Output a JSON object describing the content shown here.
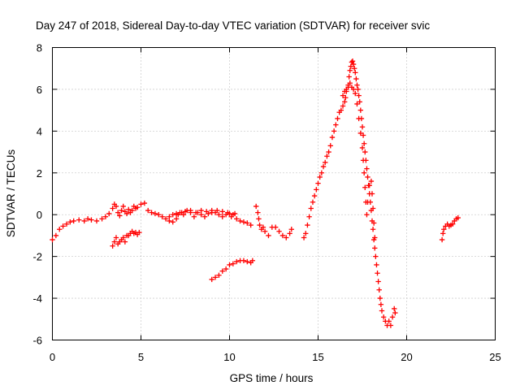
{
  "chart_data": {
    "type": "scatter",
    "title": "Day 247 of 2018, Sidereal Day-to-day VTEC variation (SDTVAR) for receiver svic",
    "xlabel": "GPS time / hours",
    "ylabel": "SDTVAR / TECUs",
    "xlim": [
      0,
      25
    ],
    "ylim": [
      -6,
      8
    ],
    "x_ticks": [
      0,
      5,
      10,
      15,
      20,
      25
    ],
    "y_ticks": [
      -6,
      -4,
      -2,
      0,
      2,
      4,
      6,
      8
    ],
    "grid": true,
    "marker": "+",
    "marker_color": "#ff0000",
    "series": [
      {
        "name": "trace-1",
        "points": [
          [
            0.0,
            -1.2
          ],
          [
            0.2,
            -1.0
          ],
          [
            0.4,
            -0.7
          ],
          [
            0.6,
            -0.55
          ],
          [
            0.8,
            -0.45
          ],
          [
            1.0,
            -0.35
          ],
          [
            1.2,
            -0.3
          ],
          [
            1.5,
            -0.25
          ],
          [
            1.8,
            -0.3
          ],
          [
            2.0,
            -0.2
          ],
          [
            2.2,
            -0.25
          ],
          [
            2.5,
            -0.3
          ],
          [
            2.8,
            -0.2
          ],
          [
            3.0,
            -0.1
          ],
          [
            3.2,
            0.05
          ],
          [
            3.4,
            0.3
          ],
          [
            3.5,
            0.5
          ],
          [
            3.6,
            0.4
          ],
          [
            3.7,
            0.1
          ],
          [
            3.8,
            -0.05
          ],
          [
            3.9,
            0.2
          ],
          [
            4.0,
            0.4
          ],
          [
            4.1,
            0.15
          ],
          [
            4.2,
            0.05
          ],
          [
            4.3,
            0.25
          ],
          [
            4.4,
            0.1
          ],
          [
            4.5,
            0.2
          ],
          [
            4.6,
            0.4
          ],
          [
            4.7,
            0.3
          ],
          [
            4.8,
            0.35
          ],
          [
            5.0,
            0.5
          ],
          [
            5.2,
            0.55
          ],
          [
            5.4,
            0.2
          ],
          [
            5.6,
            0.1
          ],
          [
            5.8,
            0.05
          ],
          [
            6.0,
            0.0
          ],
          [
            6.2,
            -0.1
          ],
          [
            6.4,
            -0.2
          ],
          [
            6.6,
            -0.3
          ],
          [
            6.8,
            -0.35
          ],
          [
            7.0,
            -0.2
          ],
          [
            7.1,
            0.0
          ],
          [
            7.2,
            0.1
          ],
          [
            7.4,
            0.0
          ],
          [
            7.6,
            0.2
          ],
          [
            7.8,
            0.1
          ],
          [
            8.0,
            -0.1
          ],
          [
            8.2,
            0.1
          ],
          [
            8.4,
            0.0
          ],
          [
            8.6,
            -0.1
          ],
          [
            8.8,
            0.05
          ],
          [
            9.0,
            0.2
          ],
          [
            9.2,
            0.1
          ],
          [
            9.4,
            0.0
          ],
          [
            9.6,
            -0.1
          ],
          [
            9.8,
            0.0
          ],
          [
            10.0,
            0.05
          ],
          [
            10.2,
            0.0
          ],
          [
            10.4,
            -0.2
          ],
          [
            10.6,
            -0.3
          ],
          [
            10.8,
            -0.35
          ],
          [
            11.0,
            -0.4
          ],
          [
            11.2,
            -0.5
          ]
        ]
      },
      {
        "name": "trace-1b",
        "points": [
          [
            6.6,
            -0.1
          ],
          [
            6.8,
            0.0
          ],
          [
            7.0,
            0.05
          ],
          [
            7.3,
            0.1
          ],
          [
            7.5,
            0.15
          ],
          [
            7.8,
            0.2
          ],
          [
            8.1,
            0.1
          ],
          [
            8.4,
            0.2
          ],
          [
            8.7,
            0.15
          ],
          [
            9.0,
            0.1
          ],
          [
            9.3,
            0.2
          ],
          [
            9.6,
            0.15
          ],
          [
            9.9,
            0.1
          ],
          [
            10.1,
            -0.1
          ],
          [
            10.3,
            0.05
          ]
        ]
      },
      {
        "name": "trace-2",
        "points": [
          [
            3.4,
            -1.5
          ],
          [
            3.5,
            -1.3
          ],
          [
            3.6,
            -1.1
          ],
          [
            3.7,
            -1.4
          ],
          [
            3.8,
            -1.3
          ],
          [
            3.9,
            -1.2
          ],
          [
            4.0,
            -1.1
          ],
          [
            4.1,
            -1.3
          ],
          [
            4.2,
            -1.0
          ],
          [
            4.3,
            -1.0
          ],
          [
            4.4,
            -0.9
          ],
          [
            4.5,
            -0.8
          ],
          [
            4.6,
            -0.9
          ],
          [
            4.7,
            -0.85
          ],
          [
            4.8,
            -0.95
          ],
          [
            4.9,
            -0.85
          ]
        ]
      },
      {
        "name": "trace-3",
        "points": [
          [
            9.0,
            -3.1
          ],
          [
            9.2,
            -3.0
          ],
          [
            9.4,
            -2.9
          ],
          [
            9.6,
            -2.7
          ],
          [
            9.8,
            -2.6
          ],
          [
            10.0,
            -2.4
          ],
          [
            10.2,
            -2.35
          ],
          [
            10.4,
            -2.25
          ],
          [
            10.6,
            -2.2
          ],
          [
            10.8,
            -2.2
          ],
          [
            11.0,
            -2.25
          ],
          [
            11.2,
            -2.3
          ],
          [
            11.3,
            -2.2
          ]
        ]
      },
      {
        "name": "trace-4",
        "points": [
          [
            11.5,
            0.4
          ],
          [
            11.6,
            0.1
          ],
          [
            11.65,
            -0.2
          ],
          [
            11.7,
            -0.5
          ],
          [
            11.8,
            -0.7
          ],
          [
            11.9,
            -0.6
          ],
          [
            12.0,
            -0.8
          ],
          [
            12.2,
            -1.0
          ],
          [
            12.4,
            -0.6
          ],
          [
            12.6,
            -0.6
          ],
          [
            12.8,
            -0.8
          ],
          [
            13.0,
            -1.0
          ],
          [
            13.2,
            -1.1
          ],
          [
            13.4,
            -0.9
          ],
          [
            13.5,
            -0.7
          ]
        ]
      },
      {
        "name": "trace-5",
        "points": [
          [
            14.2,
            -1.1
          ],
          [
            14.3,
            -0.9
          ],
          [
            14.4,
            -0.5
          ],
          [
            14.5,
            -0.1
          ],
          [
            14.6,
            0.3
          ],
          [
            14.7,
            0.6
          ],
          [
            14.8,
            0.9
          ],
          [
            14.9,
            1.2
          ],
          [
            15.0,
            1.5
          ],
          [
            15.1,
            1.8
          ],
          [
            15.2,
            2.0
          ],
          [
            15.3,
            2.3
          ],
          [
            15.4,
            2.5
          ],
          [
            15.5,
            2.8
          ],
          [
            15.6,
            3.0
          ],
          [
            15.7,
            3.3
          ],
          [
            15.8,
            3.7
          ],
          [
            15.9,
            4.0
          ],
          [
            16.0,
            4.3
          ],
          [
            16.1,
            4.6
          ],
          [
            16.2,
            4.9
          ],
          [
            16.3,
            5.0
          ],
          [
            16.4,
            5.2
          ],
          [
            16.5,
            5.4
          ],
          [
            16.55,
            5.6
          ],
          [
            16.6,
            5.9
          ],
          [
            16.7,
            6.1
          ],
          [
            16.75,
            6.6
          ],
          [
            16.8,
            6.9
          ],
          [
            16.85,
            7.1
          ],
          [
            16.9,
            7.3
          ],
          [
            16.95,
            7.35
          ],
          [
            17.0,
            7.2
          ],
          [
            17.05,
            7.0
          ],
          [
            17.1,
            6.8
          ],
          [
            17.15,
            6.5
          ],
          [
            17.2,
            6.2
          ],
          [
            17.25,
            6.0
          ],
          [
            17.3,
            5.7
          ],
          [
            17.35,
            5.4
          ],
          [
            17.4,
            5.0
          ],
          [
            17.45,
            4.6
          ],
          [
            17.5,
            4.2
          ],
          [
            17.55,
            3.8
          ],
          [
            17.6,
            3.4
          ],
          [
            17.65,
            3.0
          ],
          [
            17.7,
            2.6
          ],
          [
            17.75,
            2.2
          ],
          [
            17.8,
            1.8
          ],
          [
            17.85,
            1.4
          ],
          [
            17.9,
            1.0
          ],
          [
            17.95,
            0.6
          ],
          [
            18.0,
            0.2
          ],
          [
            18.05,
            -0.3
          ],
          [
            18.1,
            -0.7
          ],
          [
            18.15,
            -1.2
          ],
          [
            18.2,
            -1.6
          ],
          [
            18.25,
            -2.0
          ],
          [
            18.3,
            -2.4
          ],
          [
            18.35,
            -2.8
          ],
          [
            18.4,
            -3.2
          ],
          [
            18.45,
            -3.6
          ],
          [
            18.5,
            -4.0
          ],
          [
            18.55,
            -4.3
          ],
          [
            18.6,
            -4.6
          ],
          [
            18.7,
            -4.9
          ],
          [
            18.8,
            -5.1
          ],
          [
            18.9,
            -5.3
          ],
          [
            19.0,
            -5.1
          ],
          [
            19.1,
            -5.3
          ],
          [
            19.2,
            -4.9
          ],
          [
            19.3,
            -4.5
          ],
          [
            19.35,
            -4.7
          ]
        ]
      },
      {
        "name": "trace-5b",
        "points": [
          [
            16.4,
            5.7
          ],
          [
            16.5,
            5.9
          ],
          [
            16.6,
            6.0
          ],
          [
            16.7,
            6.2
          ],
          [
            16.8,
            6.3
          ],
          [
            16.9,
            6.1
          ],
          [
            17.0,
            6.0
          ],
          [
            17.1,
            5.8
          ],
          [
            17.2,
            5.3
          ],
          [
            17.3,
            4.6
          ],
          [
            17.4,
            3.9
          ],
          [
            17.5,
            3.2
          ],
          [
            17.55,
            2.6
          ],
          [
            17.6,
            2.0
          ],
          [
            17.65,
            1.3
          ],
          [
            17.7,
            0.6
          ],
          [
            17.75,
            0.0
          ],
          [
            17.8,
            0.6
          ],
          [
            17.9,
            1.4
          ],
          [
            18.0,
            1.6
          ],
          [
            18.05,
            1.0
          ],
          [
            18.1,
            0.3
          ],
          [
            18.15,
            -0.4
          ],
          [
            18.2,
            -1.1
          ]
        ]
      },
      {
        "name": "trace-6",
        "points": [
          [
            22.0,
            -1.2
          ],
          [
            22.05,
            -0.9
          ],
          [
            22.1,
            -0.7
          ],
          [
            22.2,
            -0.55
          ],
          [
            22.3,
            -0.45
          ],
          [
            22.4,
            -0.55
          ],
          [
            22.5,
            -0.5
          ],
          [
            22.6,
            -0.45
          ],
          [
            22.7,
            -0.3
          ],
          [
            22.8,
            -0.2
          ],
          [
            22.9,
            -0.15
          ]
        ]
      }
    ]
  }
}
